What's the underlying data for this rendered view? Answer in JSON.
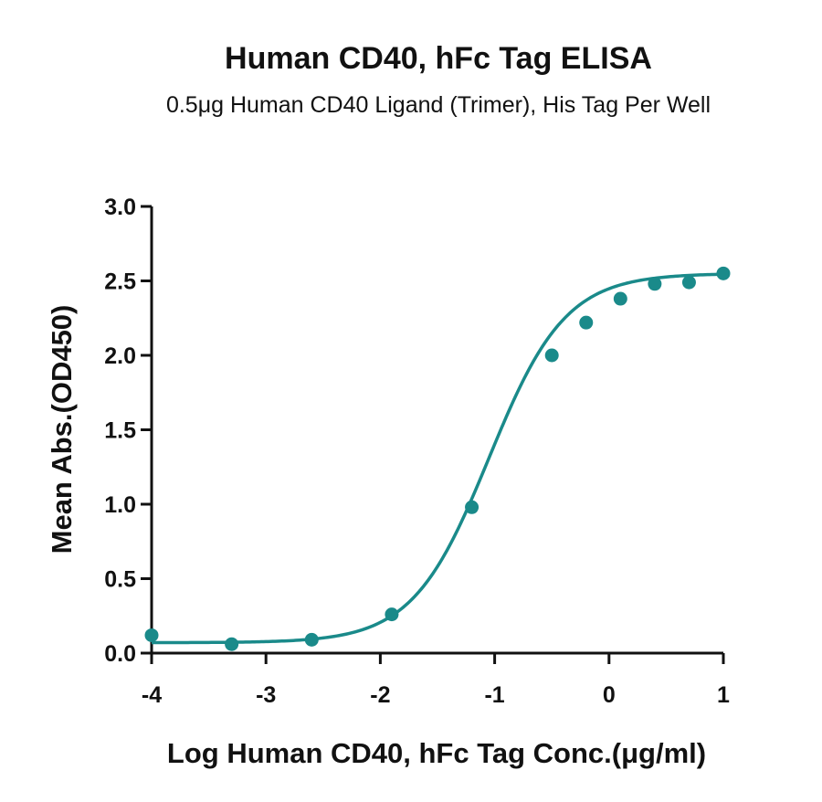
{
  "chart_data": {
    "type": "scatter",
    "title": "Human CD40, hFc Tag ELISA",
    "subtitle": "0.5μg Human CD40 Ligand (Trimer), His Tag Per Well",
    "xlabel": "Log Human CD40, hFc Tag Conc.(μg/ml)",
    "ylabel": "Mean Abs.(OD450)",
    "xlim": [
      -4,
      1
    ],
    "ylim": [
      0,
      3
    ],
    "x_ticks": [
      "-4",
      "-3",
      "-2",
      "-1",
      "0",
      "1"
    ],
    "y_ticks": [
      "0.0",
      "0.5",
      "1.0",
      "1.5",
      "2.0",
      "2.5",
      "3.0"
    ],
    "grid": false,
    "color": "#1a8a8a",
    "series": [
      {
        "points": [
          {
            "x": -4.0,
            "y": 0.12
          },
          {
            "x": -3.3,
            "y": 0.06
          },
          {
            "x": -2.6,
            "y": 0.09
          },
          {
            "x": -1.9,
            "y": 0.26
          },
          {
            "x": -1.2,
            "y": 0.98
          },
          {
            "x": -0.5,
            "y": 2.0
          },
          {
            "x": -0.2,
            "y": 2.22
          },
          {
            "x": 0.1,
            "y": 2.38
          },
          {
            "x": 0.4,
            "y": 2.48
          },
          {
            "x": 0.7,
            "y": 2.49
          },
          {
            "x": 1.0,
            "y": 2.55
          }
        ],
        "fit": "4PL",
        "fit_params": {
          "bottom": 0.07,
          "top": 2.55,
          "logEC50": -1.05,
          "hill": 1.3
        }
      }
    ]
  }
}
